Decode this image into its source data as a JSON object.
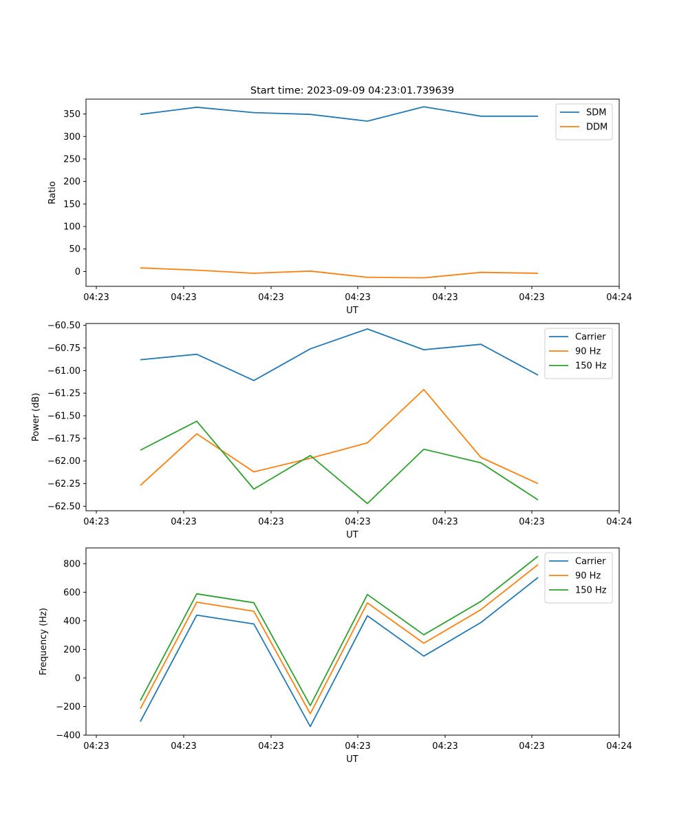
{
  "figure_title": "Start time: 2023-09-09 04:23:01.739639",
  "chart_data": [
    {
      "type": "line",
      "name": "ratio",
      "xlabel": "UT",
      "ylabel": "Ratio",
      "x_ticks": [
        "04:23",
        "04:23",
        "04:23",
        "04:23",
        "04:23",
        "04:23",
        "04:23",
        "04:24"
      ],
      "ylim": [
        -33,
        383
      ],
      "y_ticks": [
        0,
        50,
        100,
        150,
        200,
        250,
        300,
        350
      ],
      "legend": "top-right",
      "series": [
        {
          "name": "SDM",
          "color": "#1f77b4",
          "values": [
            349,
            365,
            353,
            349,
            334,
            366,
            345,
            345
          ]
        },
        {
          "name": "DDM",
          "color": "#ff7f0e",
          "values": [
            8,
            3,
            -4,
            1,
            -13,
            -14,
            -2,
            -4
          ]
        }
      ]
    },
    {
      "type": "line",
      "name": "power",
      "xlabel": "UT",
      "ylabel": "Power (dB)",
      "x_ticks": [
        "04:23",
        "04:23",
        "04:23",
        "04:23",
        "04:23",
        "04:23",
        "04:23",
        "04:24"
      ],
      "ylim": [
        -62.55,
        -60.48
      ],
      "y_ticks": [
        -62.5,
        -62.25,
        -62.0,
        -61.75,
        -61.5,
        -61.25,
        -61.0,
        -60.75,
        -60.5
      ],
      "y_tick_labels": [
        "−62.50",
        "−62.25",
        "−62.00",
        "−61.75",
        "−61.50",
        "−61.25",
        "−61.00",
        "−60.75",
        "−60.50"
      ],
      "legend": "top-right",
      "series": [
        {
          "name": "Carrier",
          "color": "#1f77b4",
          "values": [
            -60.88,
            -60.82,
            -61.11,
            -60.76,
            -60.54,
            -60.77,
            -60.71,
            -61.05
          ]
        },
        {
          "name": "90 Hz",
          "color": "#ff7f0e",
          "values": [
            -62.27,
            -61.7,
            -62.12,
            -61.97,
            -61.8,
            -61.21,
            -61.96,
            -62.25
          ]
        },
        {
          "name": "150 Hz",
          "color": "#2ca02c",
          "values": [
            -61.88,
            -61.56,
            -62.31,
            -61.94,
            -62.47,
            -61.87,
            -62.02,
            -62.43
          ]
        }
      ]
    },
    {
      "type": "line",
      "name": "frequency",
      "xlabel": "UT",
      "ylabel": "Frequency (Hz)",
      "x_ticks": [
        "04:23",
        "04:23",
        "04:23",
        "04:23",
        "04:23",
        "04:23",
        "04:23",
        "04:24"
      ],
      "ylim": [
        -400,
        910
      ],
      "y_ticks": [
        -400,
        -200,
        0,
        200,
        400,
        600,
        800
      ],
      "y_tick_labels": [
        "−400",
        "−200",
        "0",
        "200",
        "400",
        "600",
        "800"
      ],
      "legend": "top-right",
      "series": [
        {
          "name": "Carrier",
          "color": "#1f77b4",
          "values": [
            -305,
            440,
            378,
            -340,
            435,
            153,
            388,
            703
          ]
        },
        {
          "name": "90 Hz",
          "color": "#ff7f0e",
          "values": [
            -215,
            530,
            467,
            -250,
            525,
            243,
            478,
            793
          ]
        },
        {
          "name": "150 Hz",
          "color": "#2ca02c",
          "values": [
            -158,
            589,
            526,
            -193,
            584,
            302,
            536,
            852
          ]
        }
      ]
    }
  ]
}
